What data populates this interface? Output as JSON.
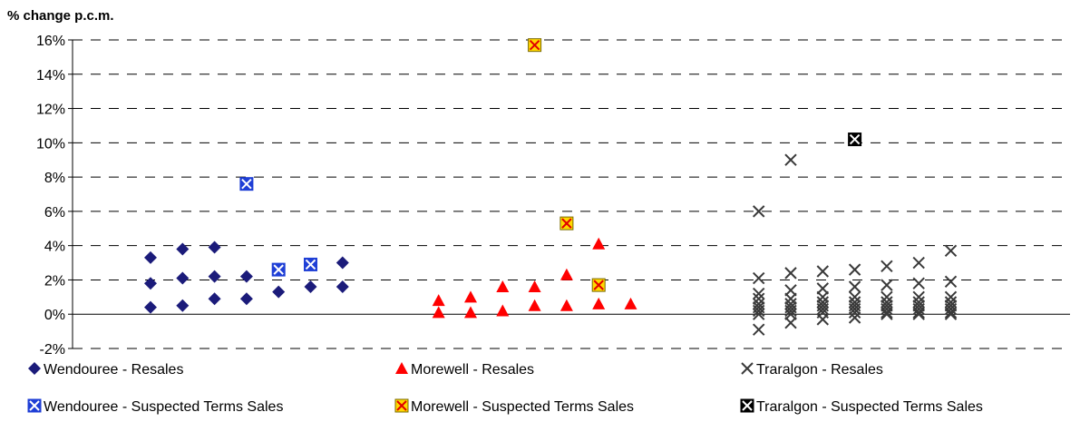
{
  "chart_data": {
    "type": "scatter",
    "ylabel": "% change p.c.m.",
    "ylim": [
      -2,
      16
    ],
    "yticks": [
      -2,
      0,
      2,
      4,
      6,
      8,
      10,
      12,
      14,
      16
    ],
    "ytick_labels": [
      "-2%",
      "0%",
      "2%",
      "4%",
      "6%",
      "8%",
      "10%",
      "12%",
      "14%",
      "16%"
    ],
    "grid": "horizontal dashed",
    "legend_position": "bottom",
    "series": [
      {
        "name": "Wendouree - Resales",
        "marker": "diamond",
        "color": "#1b1b7a",
        "points": [
          {
            "x": 1,
            "y": 3.3
          },
          {
            "x": 1,
            "y": 1.8
          },
          {
            "x": 1,
            "y": 0.4
          },
          {
            "x": 2,
            "y": 3.8
          },
          {
            "x": 2,
            "y": 2.1
          },
          {
            "x": 2,
            "y": 0.5
          },
          {
            "x": 3,
            "y": 3.9
          },
          {
            "x": 3,
            "y": 2.2
          },
          {
            "x": 3,
            "y": 0.9
          },
          {
            "x": 4,
            "y": 2.2
          },
          {
            "x": 4,
            "y": 0.9
          },
          {
            "x": 5,
            "y": 1.3
          },
          {
            "x": 6,
            "y": 1.6
          },
          {
            "x": 7,
            "y": 3.0
          },
          {
            "x": 7,
            "y": 1.6
          }
        ]
      },
      {
        "name": "Wendouree - Suspected Terms Sales",
        "marker": "boxed-x",
        "color": "#1f3fd6",
        "points": [
          {
            "x": 4,
            "y": 7.6
          },
          {
            "x": 5,
            "y": 2.6
          },
          {
            "x": 6,
            "y": 2.9
          }
        ]
      },
      {
        "name": "Morewell - Resales",
        "marker": "triangle",
        "color": "#ff0000",
        "points": [
          {
            "x": 10,
            "y": 0.8
          },
          {
            "x": 10,
            "y": 0.1
          },
          {
            "x": 11,
            "y": 1.0
          },
          {
            "x": 11,
            "y": 0.1
          },
          {
            "x": 12,
            "y": 1.6
          },
          {
            "x": 12,
            "y": 0.2
          },
          {
            "x": 13,
            "y": 1.6
          },
          {
            "x": 13,
            "y": 0.5
          },
          {
            "x": 14,
            "y": 2.3
          },
          {
            "x": 14,
            "y": 0.5
          },
          {
            "x": 15,
            "y": 4.1
          },
          {
            "x": 15,
            "y": 0.6
          },
          {
            "x": 16,
            "y": 0.6
          }
        ]
      },
      {
        "name": "Morewell - Suspected Terms Sales",
        "marker": "boxed-x",
        "color": "#ffd700",
        "accent": "#e00000",
        "points": [
          {
            "x": 13,
            "y": 15.7
          },
          {
            "x": 14,
            "y": 5.3
          },
          {
            "x": 15,
            "y": 1.7
          }
        ]
      },
      {
        "name": "Traralgon - Resales",
        "marker": "x",
        "color": "#3a3a3a",
        "points": [
          {
            "x": 20,
            "y": 6.0
          },
          {
            "x": 20,
            "y": 2.1
          },
          {
            "x": 20,
            "y": 1.2
          },
          {
            "x": 20,
            "y": 0.9
          },
          {
            "x": 20,
            "y": 0.6
          },
          {
            "x": 20,
            "y": 0.4
          },
          {
            "x": 20,
            "y": 0.2
          },
          {
            "x": 20,
            "y": 0.0
          },
          {
            "x": 20,
            "y": -0.9
          },
          {
            "x": 21,
            "y": 9.0
          },
          {
            "x": 21,
            "y": 2.4
          },
          {
            "x": 21,
            "y": 1.4
          },
          {
            "x": 21,
            "y": 0.9
          },
          {
            "x": 21,
            "y": 0.6
          },
          {
            "x": 21,
            "y": 0.4
          },
          {
            "x": 21,
            "y": 0.2
          },
          {
            "x": 21,
            "y": 0.0
          },
          {
            "x": 21,
            "y": -0.5
          },
          {
            "x": 22,
            "y": 2.5
          },
          {
            "x": 22,
            "y": 1.5
          },
          {
            "x": 22,
            "y": 1.0
          },
          {
            "x": 22,
            "y": 0.7
          },
          {
            "x": 22,
            "y": 0.5
          },
          {
            "x": 22,
            "y": 0.3
          },
          {
            "x": 22,
            "y": 0.1
          },
          {
            "x": 22,
            "y": -0.3
          },
          {
            "x": 23,
            "y": 2.6
          },
          {
            "x": 23,
            "y": 1.6
          },
          {
            "x": 23,
            "y": 1.0
          },
          {
            "x": 23,
            "y": 0.7
          },
          {
            "x": 23,
            "y": 0.5
          },
          {
            "x": 23,
            "y": 0.3
          },
          {
            "x": 23,
            "y": 0.1
          },
          {
            "x": 23,
            "y": -0.2
          },
          {
            "x": 24,
            "y": 2.8
          },
          {
            "x": 24,
            "y": 1.7
          },
          {
            "x": 24,
            "y": 1.0
          },
          {
            "x": 24,
            "y": 0.7
          },
          {
            "x": 24,
            "y": 0.5
          },
          {
            "x": 24,
            "y": 0.3
          },
          {
            "x": 24,
            "y": 0.1
          },
          {
            "x": 24,
            "y": 0.0
          },
          {
            "x": 25,
            "y": 3.0
          },
          {
            "x": 25,
            "y": 1.8
          },
          {
            "x": 25,
            "y": 1.0
          },
          {
            "x": 25,
            "y": 0.7
          },
          {
            "x": 25,
            "y": 0.5
          },
          {
            "x": 25,
            "y": 0.3
          },
          {
            "x": 25,
            "y": 0.1
          },
          {
            "x": 25,
            "y": 0.0
          },
          {
            "x": 26,
            "y": 3.7
          },
          {
            "x": 26,
            "y": 1.9
          },
          {
            "x": 26,
            "y": 1.0
          },
          {
            "x": 26,
            "y": 0.7
          },
          {
            "x": 26,
            "y": 0.5
          },
          {
            "x": 26,
            "y": 0.3
          },
          {
            "x": 26,
            "y": 0.1
          },
          {
            "x": 26,
            "y": 0.0
          }
        ]
      },
      {
        "name": "Traralgon - Suspected Terms Sales",
        "marker": "boxed-x",
        "color": "#000000",
        "points": [
          {
            "x": 23,
            "y": 10.2
          }
        ]
      }
    ]
  }
}
